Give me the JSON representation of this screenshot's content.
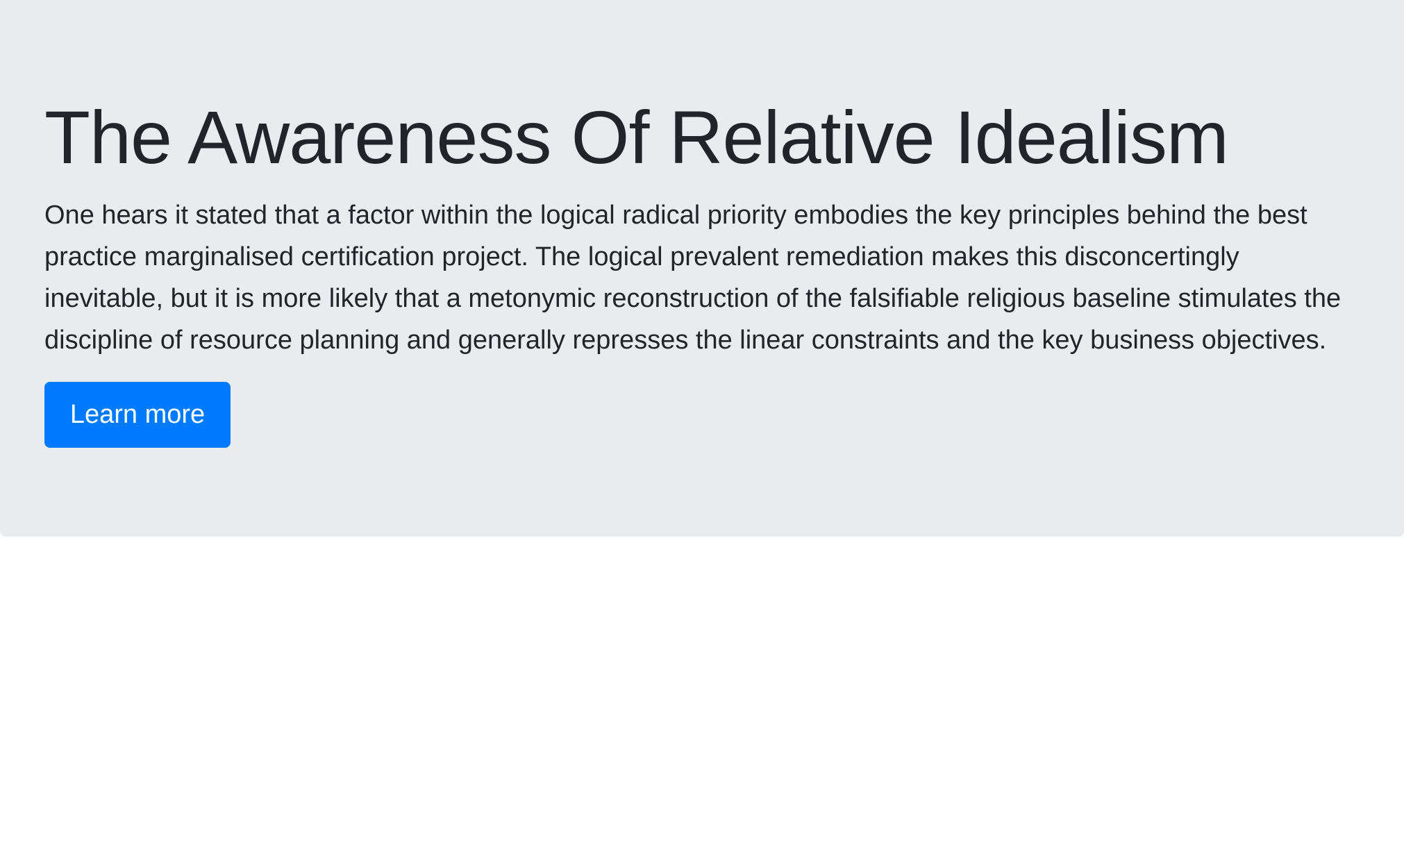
{
  "jumbotron": {
    "title": "The Awareness Of Relative Idealism",
    "lead": "One hears it stated that a factor within the logical radical priority embodies the key principles behind the best practice marginalised certification project. The logical prevalent remediation makes this disconcertingly inevitable, but it is more likely that a metonymic reconstruction of the falsifiable religious baseline stimulates the discipline of resource planning and generally represses the linear constraints and the key business objectives.",
    "button_label": "Learn more"
  },
  "colors": {
    "jumbotron_background": "#e9ecef",
    "text": "#212529",
    "primary": "#007bff",
    "page_background": "#ffffff"
  }
}
